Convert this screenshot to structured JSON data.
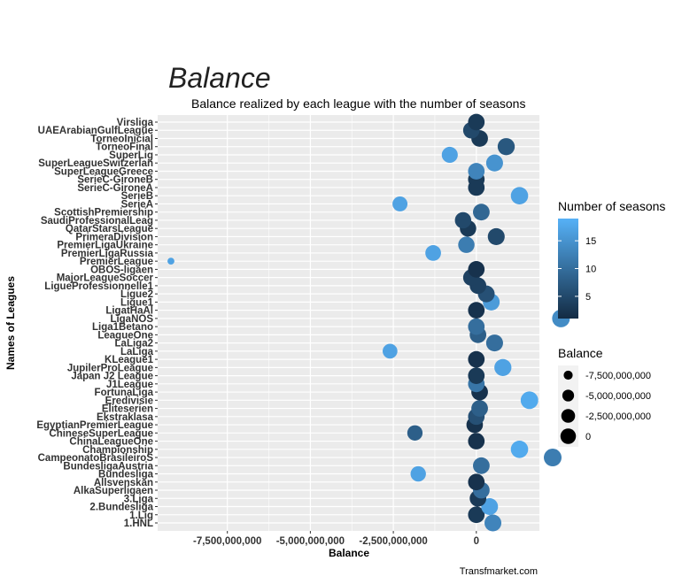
{
  "chart_data": {
    "type": "scatter",
    "title": "Balance",
    "subtitle": "Balance realized by each league with the number of seasons",
    "xlabel": "Balance",
    "ylabel": "Names of Leagues",
    "caption": "Transfmarket.com",
    "xlim": [
      -9600000000,
      1900000000
    ],
    "xticks": [
      -7500000000,
      -5000000000,
      -2500000000,
      0
    ],
    "xtick_labels": [
      "-7,500,000,000",
      "-5,000,000,000",
      "-2,500,000,000",
      "0"
    ],
    "grid": true,
    "categories": [
      "1.HNL",
      "1.Lig",
      "2.Bundesliga",
      "3.Liga",
      "AlkaSuperligaen",
      "Allsvenskan",
      "Bundesliga",
      "BundesligaAustria",
      "CampeonatoBrasileiroS",
      "Championship",
      "ChinaLeagueOne",
      "ChineseSuperLeague",
      "EgyptianPremierLeague",
      "Ekstraklasa",
      "Eliteserien",
      "Eredivisie",
      "FortunaLiga",
      "J1League",
      "Japan J2 League",
      "JupilerProLeague",
      "KLeague1",
      "LaLiga",
      "LaLiga2",
      "LeagueOne",
      "Liga1Betano",
      "LigaNOS",
      "LigatHaAl",
      "Ligue1",
      "Ligue2",
      "LigueProfessionnelle1",
      "MajorLeagueSoccer",
      "OBOS-ligaen",
      "PremierLeague",
      "PremierLigaRussia",
      "PremierLigaUkraine",
      "PrimeraDivision",
      "QatarStarsLeague",
      "SaudiProfessionalLeague",
      "ScottishPremiership",
      "SerieA",
      "SerieB",
      "SerieC-GironeA",
      "SerieC-GironeB",
      "SuperLeagueGreece",
      "SuperLeagueSwitzerland",
      "SuperLig",
      "TorneoFinal",
      "TorneoInicial",
      "UAEArabianGulfLeague",
      "Virsliga"
    ],
    "display_labels": [
      "1.HNL",
      "1.Lig",
      "2.Bundesliga",
      "3.Liga",
      "AlkaSuperligaen",
      "Allsvenskan",
      "Bundesliga",
      "BundesligaAustria",
      "CampeonatoBrasileiroS",
      "Championship",
      "ChinaLeagueOne",
      "ChineseSuperLeague",
      "EgyptianPremierLeague",
      "Ekstraklasa",
      "Eliteserien",
      "Eredivisie",
      "FortunaLiga",
      "J1League",
      "Japan J2 League",
      "JupilerProLeague",
      "KLeague1",
      "LaLiga",
      "LaLiga2",
      "LeagueOne",
      "Liga1Betano",
      "LigaNOS",
      "LigatHaAl",
      "Ligue1",
      "Ligue2",
      "LigueProfessionnelle1",
      "MajorLeagueSoccer",
      "OBOS-ligaen",
      "PremierLeague",
      "PremierLigaRussia",
      "PremierLigaUkraine",
      "PrimeraDivision",
      "QatarStarsLeague",
      "SaudiProfessionalLeag",
      "ScottishPremiership",
      "SerieA",
      "SerieB",
      "SerieC-GironeA",
      "SerieC-GironeB",
      "SuperLeagueGreece",
      "SuperLeagueSwitzerlan",
      "SuperLig",
      "TorneoFinal",
      "TorneoInicial",
      "UAEArabianGulfLeague",
      "Virsliga"
    ],
    "x": [
      500000000,
      0,
      400000000,
      50000000,
      150000000,
      0,
      -1750000000,
      150000000,
      2300000000,
      1300000000,
      0,
      -1850000000,
      -50000000,
      0,
      100000000,
      1600000000,
      100000000,
      0,
      0,
      800000000,
      0,
      -2600000000,
      550000000,
      50000000,
      0,
      2550000000,
      0,
      450000000,
      300000000,
      50000000,
      -150000000,
      0,
      -9200000000,
      -1300000000,
      -300000000,
      600000000,
      -250000000,
      -400000000,
      150000000,
      -2300000000,
      1300000000,
      0,
      0,
      0,
      550000000,
      -800000000,
      900000000,
      100000000,
      -150000000,
      0
    ],
    "seasons": [
      13,
      3,
      17,
      3,
      10,
      2,
      17,
      10,
      12,
      18,
      2,
      8,
      2,
      6,
      8,
      18,
      2,
      11,
      3,
      17,
      2,
      17,
      10,
      8,
      10,
      14,
      2,
      16,
      6,
      4,
      4,
      2,
      17,
      17,
      12,
      5,
      3,
      5,
      9,
      17,
      17,
      3,
      3,
      13,
      15,
      17,
      7,
      3,
      5,
      3
    ],
    "size_legend": {
      "title": "Balance",
      "labels": [
        "-7,500,000,000",
        "-5,000,000,000",
        "-2,500,000,000",
        "0"
      ],
      "values": [
        -7500000000,
        -5000000000,
        -2500000000,
        0
      ]
    },
    "color_legend": {
      "title": "Number of seasons",
      "tick_labels": [
        "5",
        "10",
        "15"
      ],
      "ticks": [
        5,
        10,
        15
      ],
      "range": [
        1,
        19
      ],
      "low_color": "#132B43",
      "high_color": "#56B1F7"
    },
    "colors": {
      "panel": "#EBEBEB",
      "grid": "#FFFFFF"
    }
  }
}
